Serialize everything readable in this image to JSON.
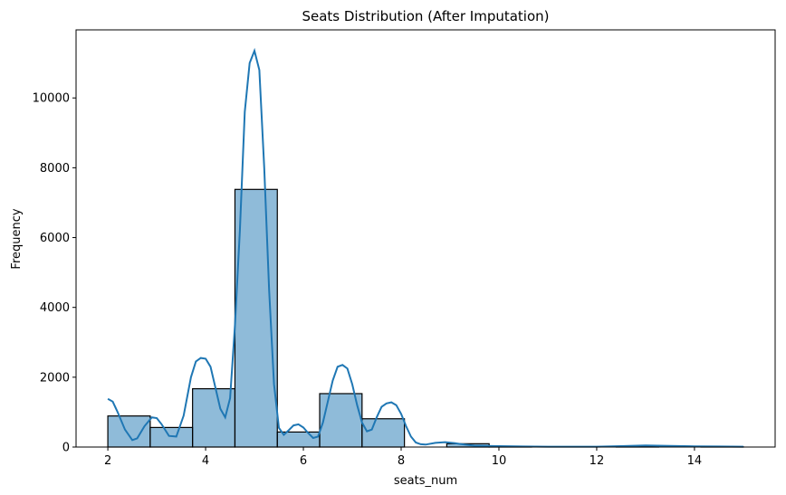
{
  "chart_data": {
    "type": "bar",
    "title": "Seats Distribution (After Imputation)",
    "xlabel": "seats_num",
    "ylabel": "Frequency",
    "xlim": [
      1.35,
      15.65
    ],
    "ylim": [
      0,
      11950
    ],
    "x_ticks": [
      2,
      4,
      6,
      8,
      10,
      12,
      14
    ],
    "y_ticks": [
      0,
      2000,
      4000,
      6000,
      8000,
      10000
    ],
    "bins": [
      {
        "start": 2.0,
        "end": 2.867,
        "count": 890
      },
      {
        "start": 2.867,
        "end": 3.733,
        "count": 560
      },
      {
        "start": 3.733,
        "end": 4.6,
        "count": 1670
      },
      {
        "start": 4.6,
        "end": 5.467,
        "count": 7380
      },
      {
        "start": 5.467,
        "end": 6.333,
        "count": 430
      },
      {
        "start": 6.333,
        "end": 7.2,
        "count": 1530
      },
      {
        "start": 7.2,
        "end": 8.067,
        "count": 810
      },
      {
        "start": 8.067,
        "end": 8.933,
        "count": 0
      },
      {
        "start": 8.933,
        "end": 9.8,
        "count": 95
      },
      {
        "start": 9.8,
        "end": 10.667,
        "count": 10
      },
      {
        "start": 10.667,
        "end": 11.533,
        "count": 0
      },
      {
        "start": 11.533,
        "end": 12.4,
        "count": 0
      },
      {
        "start": 12.4,
        "end": 13.267,
        "count": 20
      },
      {
        "start": 13.267,
        "end": 14.133,
        "count": 0
      },
      {
        "start": 14.133,
        "end": 15.0,
        "count": 5
      }
    ],
    "kde": {
      "x": [
        2.0,
        2.1,
        2.2,
        2.35,
        2.5,
        2.6,
        2.75,
        2.9,
        3.0,
        3.1,
        3.25,
        3.4,
        3.55,
        3.7,
        3.8,
        3.9,
        4.0,
        4.1,
        4.2,
        4.3,
        4.4,
        4.5,
        4.6,
        4.7,
        4.8,
        4.9,
        5.0,
        5.1,
        5.2,
        5.3,
        5.4,
        5.5,
        5.6,
        5.7,
        5.8,
        5.9,
        6.0,
        6.1,
        6.2,
        6.3,
        6.4,
        6.5,
        6.6,
        6.7,
        6.8,
        6.9,
        7.0,
        7.1,
        7.2,
        7.3,
        7.4,
        7.5,
        7.6,
        7.7,
        7.8,
        7.9,
        8.0,
        8.1,
        8.2,
        8.3,
        8.4,
        8.5,
        8.7,
        8.9,
        9.1,
        9.3,
        9.5,
        9.7,
        10.0,
        10.5,
        11.0,
        12.0,
        12.5,
        13.0,
        13.5,
        14.0,
        14.5,
        15.0
      ],
      "y": [
        1380,
        1300,
        1000,
        500,
        200,
        250,
        600,
        850,
        830,
        650,
        320,
        300,
        900,
        2000,
        2450,
        2550,
        2530,
        2300,
        1700,
        1100,
        850,
        1400,
        3500,
        6200,
        9600,
        11000,
        11350,
        10800,
        8000,
        4500,
        1800,
        550,
        350,
        480,
        620,
        650,
        560,
        400,
        260,
        300,
        700,
        1300,
        1900,
        2300,
        2350,
        2250,
        1800,
        1200,
        700,
        450,
        500,
        850,
        1150,
        1250,
        1280,
        1200,
        950,
        600,
        300,
        130,
        80,
        70,
        120,
        140,
        110,
        70,
        40,
        30,
        25,
        15,
        10,
        10,
        25,
        45,
        30,
        20,
        15,
        10
      ]
    }
  }
}
